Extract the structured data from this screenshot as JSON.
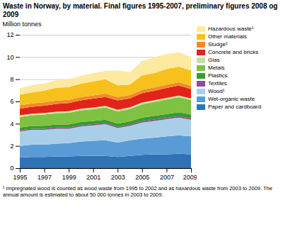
{
  "chart_data": {
    "type": "area",
    "stacked": true,
    "title": "Waste in Norway, by material. Final figures 1995-2007, preliminary figures 2008 og 2009",
    "y_label": "Million tonnes",
    "footnote": "¹ Impregnated wood is counted as wood waste from 1995 to 2002 and as haxardous waste from 2003 to 2009. The annual amount is estimated to about 50 000 tonnes in 2003 to 2009.",
    "x": [
      1995,
      1996,
      1997,
      1998,
      1999,
      2000,
      2001,
      2002,
      2003,
      2004,
      2005,
      2006,
      2007,
      2008,
      2009
    ],
    "xlim": [
      1995,
      2009
    ],
    "xticks": [
      1995,
      1997,
      1999,
      2001,
      2003,
      2005,
      2007,
      {
        "value": 2009,
        "label": "2009*"
      }
    ],
    "ylim": [
      0,
      12
    ],
    "yticks": [
      0,
      2,
      4,
      6,
      8,
      10,
      12
    ],
    "grid": true,
    "legend": "right",
    "series": [
      {
        "name": "Paper and cardboard",
        "color": "#2f73b5",
        "values": [
          0.95,
          1.0,
          1.0,
          1.05,
          1.05,
          1.1,
          1.1,
          1.1,
          1.0,
          1.1,
          1.2,
          1.25,
          1.25,
          1.3,
          1.25
        ]
      },
      {
        "name": "Wet-organic waste",
        "color": "#5b9bd5",
        "values": [
          1.05,
          1.1,
          1.1,
          1.15,
          1.2,
          1.3,
          1.35,
          1.4,
          1.3,
          1.4,
          1.45,
          1.5,
          1.6,
          1.65,
          1.6
        ]
      },
      {
        "name": "Wood¹",
        "color": "#a9cfe8",
        "values": [
          1.3,
          1.35,
          1.35,
          1.35,
          1.3,
          1.35,
          1.4,
          1.45,
          1.3,
          1.3,
          1.45,
          1.5,
          1.55,
          1.6,
          1.5
        ]
      },
      {
        "name": "Textiles",
        "color": "#8e4a9c",
        "values": [
          0.1,
          0.1,
          0.1,
          0.1,
          0.1,
          0.1,
          0.1,
          0.1,
          0.1,
          0.1,
          0.12,
          0.12,
          0.12,
          0.12,
          0.12
        ]
      },
      {
        "name": "Plastics",
        "color": "#3a9a32",
        "values": [
          0.25,
          0.25,
          0.27,
          0.28,
          0.28,
          0.3,
          0.3,
          0.3,
          0.3,
          0.32,
          0.33,
          0.34,
          0.35,
          0.36,
          0.35
        ]
      },
      {
        "name": "Metals",
        "color": "#7fc241",
        "values": [
          0.95,
          0.95,
          1.0,
          1.0,
          1.05,
          1.05,
          1.05,
          1.1,
          1.1,
          1.1,
          1.2,
          1.25,
          1.3,
          1.35,
          1.3
        ]
      },
      {
        "name": "Glas",
        "color": "#c5e3a0",
        "values": [
          0.15,
          0.15,
          0.15,
          0.15,
          0.15,
          0.15,
          0.15,
          0.15,
          0.15,
          0.15,
          0.15,
          0.15,
          0.15,
          0.15,
          0.15
        ]
      },
      {
        "name": "Concrete and bricks",
        "color": "#e2231a",
        "values": [
          0.6,
          0.62,
          0.65,
          0.7,
          0.72,
          0.75,
          0.8,
          0.8,
          0.85,
          0.8,
          0.85,
          0.85,
          0.9,
          0.9,
          0.85
        ]
      },
      {
        "name": "Sludge²",
        "color": "#f28a2b",
        "values": [
          0.3,
          0.3,
          0.3,
          0.3,
          0.3,
          0.3,
          0.3,
          0.3,
          0.3,
          0.3,
          0.3,
          0.3,
          0.3,
          0.3,
          0.3
        ]
      },
      {
        "name": "Other materials",
        "color": "#f7c01c",
        "values": [
          0.95,
          1.0,
          1.05,
          1.15,
          1.15,
          1.2,
          1.25,
          1.3,
          1.05,
          0.95,
          1.3,
          1.3,
          1.4,
          1.4,
          1.35
        ]
      },
      {
        "name": "Hazardous waste¹",
        "color": "#fde9a0",
        "values": [
          0.6,
          0.65,
          0.65,
          0.7,
          0.7,
          0.7,
          0.75,
          0.75,
          1.35,
          1.1,
          1.3,
          1.4,
          1.35,
          1.3,
          1.2
        ]
      }
    ]
  }
}
